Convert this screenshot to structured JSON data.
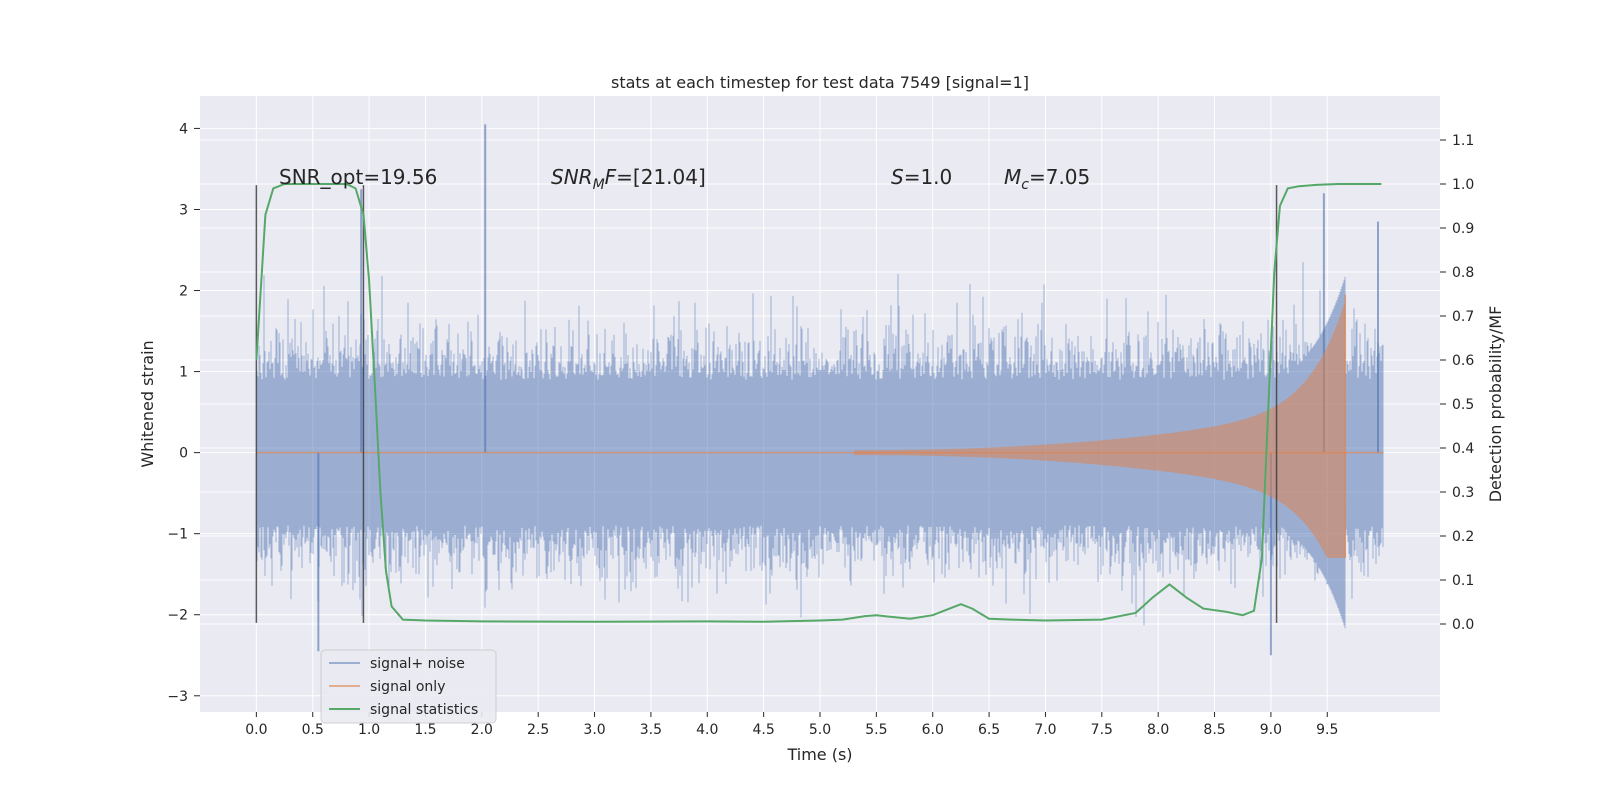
{
  "chart_data": {
    "type": "line",
    "title": "stats at each timestep for test data 7549 [signal=1]",
    "xlabel": "Time (s)",
    "ylabel": "Whitened strain",
    "y2label": "Detection probability/MF",
    "xlim": [
      -0.5,
      10.5
    ],
    "ylim": [
      -3.2,
      4.4
    ],
    "y2lim": [
      -0.2,
      1.2
    ],
    "grid": true,
    "legend_position": "lower-left",
    "x_ticks": [
      0.0,
      0.5,
      1.0,
      1.5,
      2.0,
      2.5,
      3.0,
      3.5,
      4.0,
      4.5,
      5.0,
      5.5,
      6.0,
      6.5,
      7.0,
      7.5,
      8.0,
      8.5,
      9.0,
      9.5
    ],
    "x_tick_labels": [
      "0.0",
      "0.5",
      "1.0",
      "1.5",
      "2.0",
      "2.5",
      "3.0",
      "3.5",
      "4.0",
      "4.5",
      "5.0",
      "5.5",
      "6.0",
      "6.5",
      "7.0",
      "7.5",
      "8.0",
      "8.5",
      "9.0",
      "9.5"
    ],
    "y_ticks": [
      -3,
      -2,
      -1,
      0,
      1,
      2,
      3,
      4
    ],
    "y_tick_labels": [
      "−3",
      "−2",
      "−1",
      "0",
      "1",
      "2",
      "3",
      "4"
    ],
    "y2_ticks": [
      0.0,
      0.1,
      0.2,
      0.3,
      0.4,
      0.5,
      0.6,
      0.7,
      0.8,
      0.9,
      1.0,
      1.1
    ],
    "y2_tick_labels": [
      "0.0",
      "0.1",
      "0.2",
      "0.3",
      "0.4",
      "0.5",
      "0.6",
      "0.7",
      "0.8",
      "0.9",
      "1.0",
      "1.1"
    ],
    "annotations": [
      {
        "id": "snr-opt",
        "text": "SNR_opt=19.56"
      },
      {
        "id": "snr-mf",
        "text": "SNRMF=[21.04]"
      },
      {
        "id": "s-stat",
        "text": "S=1.0"
      },
      {
        "id": "chirp-mass",
        "text": "Mc=7.05"
      }
    ],
    "vertical_markers": [
      0.0,
      0.95,
      9.05
    ],
    "vertical_marker_range": [
      -2.1,
      3.3
    ],
    "colors": {
      "plot_bg": "#eaeaf2",
      "grid": "#ffffff",
      "noise": "#4c72b0",
      "signal": "#dd8452",
      "stats": "#55a868",
      "marker": "#3d3d3d"
    },
    "series": [
      {
        "name": "signal+ noise",
        "axis": "left",
        "description_of_envelope": "noise band roughly ±1.6 with spikes",
        "x_range": [
          0.0,
          10.0
        ],
        "peak_points": [
          {
            "x": 2.03,
            "y": 4.05
          },
          {
            "x": 9.47,
            "y": 3.2
          },
          {
            "x": 0.93,
            "y": 3.25
          },
          {
            "x": 9.95,
            "y": 2.85
          },
          {
            "x": 9.0,
            "y": -2.5
          },
          {
            "x": 0.55,
            "y": -2.45
          }
        ]
      },
      {
        "name": "signal only",
        "axis": "left",
        "chirp_start": 5.3,
        "chirp_end": 9.66,
        "peak_amplitude": 1.95,
        "min_amplitude": -1.3
      },
      {
        "name": "signal statistics",
        "axis": "right",
        "x": [
          0.0,
          0.08,
          0.15,
          0.25,
          0.4,
          0.6,
          0.8,
          0.88,
          0.95,
          1.0,
          1.05,
          1.1,
          1.15,
          1.2,
          1.3,
          1.5,
          2.0,
          3.0,
          4.0,
          4.5,
          5.0,
          5.2,
          5.4,
          5.5,
          5.6,
          5.8,
          6.0,
          6.15,
          6.25,
          6.35,
          6.5,
          6.7,
          7.0,
          7.5,
          7.8,
          7.95,
          8.1,
          8.25,
          8.4,
          8.6,
          8.75,
          8.85,
          8.92,
          8.97,
          9.03,
          9.08,
          9.15,
          9.25,
          9.4,
          9.6,
          9.8,
          9.98
        ],
        "y": [
          0.6,
          0.93,
          0.99,
          1.0,
          1.0,
          1.0,
          1.0,
          0.99,
          0.93,
          0.78,
          0.55,
          0.3,
          0.12,
          0.04,
          0.01,
          0.008,
          0.006,
          0.005,
          0.006,
          0.005,
          0.008,
          0.01,
          0.018,
          0.02,
          0.017,
          0.012,
          0.02,
          0.035,
          0.045,
          0.035,
          0.012,
          0.01,
          0.008,
          0.01,
          0.025,
          0.06,
          0.09,
          0.06,
          0.035,
          0.028,
          0.02,
          0.03,
          0.15,
          0.45,
          0.8,
          0.95,
          0.99,
          0.995,
          0.998,
          1.0,
          1.0,
          1.0
        ]
      }
    ]
  },
  "legend": {
    "items": [
      {
        "label": "signal+ noise"
      },
      {
        "label": "signal only"
      },
      {
        "label": "signal statistics"
      }
    ]
  }
}
